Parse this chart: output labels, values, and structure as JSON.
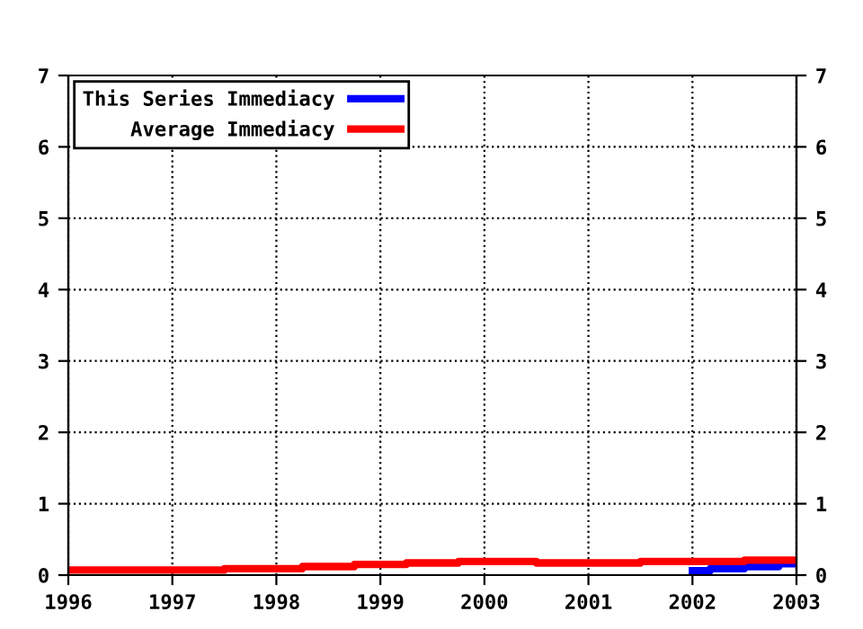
{
  "chart_data": {
    "type": "step",
    "xlim": [
      1996,
      2003
    ],
    "xticks": [
      1996,
      1997,
      1998,
      1999,
      2000,
      2001,
      2002,
      2003
    ],
    "ylim": [
      0,
      7
    ],
    "yticks": [
      0,
      1,
      2,
      3,
      4,
      5,
      6,
      7
    ],
    "y2lim": [
      0,
      7
    ],
    "y2ticks": [
      0,
      1,
      2,
      3,
      4,
      5,
      6,
      7
    ],
    "grid": true,
    "legend": "top left",
    "series": [
      {
        "name": "This Series Immediacy",
        "color": "#0000ff",
        "x": [
          2002,
          2002.17,
          2002.5,
          2002.83,
          2003
        ],
        "values": [
          0.06,
          0.09,
          0.12,
          0.16,
          0.16
        ]
      },
      {
        "name": "Average Immediacy",
        "color": "#ff0000",
        "x": [
          1996,
          1997.5,
          1998.25,
          1998.75,
          1999.25,
          1999.75,
          2000.5,
          2001.5,
          2002.5,
          2003
        ],
        "values": [
          0.07,
          0.09,
          0.12,
          0.15,
          0.17,
          0.19,
          0.17,
          0.19,
          0.21,
          0.21
        ]
      }
    ]
  }
}
